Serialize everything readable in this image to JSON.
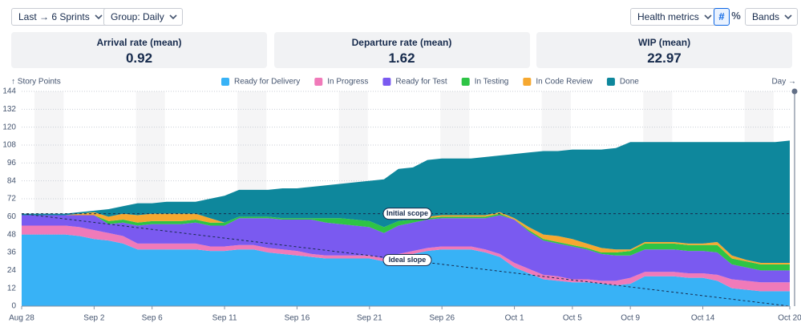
{
  "controls": {
    "range": "Last → 6 Sprints",
    "group": "Group: Daily",
    "health": "Health metrics",
    "count": "#",
    "percent": "%",
    "bands": "Bands"
  },
  "metrics": [
    {
      "label": "Arrival rate (mean)",
      "value": 0.92
    },
    {
      "label": "Departure rate (mean)",
      "value": 1.62
    },
    {
      "label": "WIP (mean)",
      "value": 22.97
    }
  ],
  "chart_data": {
    "type": "stacked-area",
    "y_label": "↑ Story Points",
    "x_label": "Day →",
    "categories": [
      "Aug 28",
      null,
      null,
      null,
      null,
      "Sep 2",
      null,
      null,
      null,
      "Sep 6",
      null,
      null,
      null,
      null,
      "Sep 11",
      null,
      null,
      null,
      null,
      "Sep 16",
      null,
      null,
      null,
      null,
      "Sep 21",
      null,
      null,
      null,
      null,
      "Sep 26",
      null,
      null,
      null,
      null,
      "Oct 1",
      null,
      null,
      null,
      "Oct 5",
      null,
      null,
      null,
      "Oct 9",
      null,
      null,
      null,
      null,
      "Oct 14",
      null,
      null,
      null,
      null,
      null,
      "Oct 20"
    ],
    "series": [
      {
        "name": "Ready for Delivery",
        "color": "#38b2f6",
        "values": [
          48,
          48,
          48,
          48,
          47,
          45,
          44,
          42,
          38,
          38,
          38,
          38,
          38,
          37,
          37,
          38,
          38,
          36,
          35,
          34,
          33,
          32,
          32,
          32,
          32,
          30,
          33,
          35,
          37,
          38,
          38,
          38,
          36,
          33,
          26,
          22,
          18,
          17,
          16,
          16,
          15,
          14,
          15,
          20,
          20,
          20,
          19,
          19,
          17,
          12,
          11,
          10,
          10,
          10
        ]
      },
      {
        "name": "In Progress",
        "color": "#f07ab9",
        "values": [
          6,
          6,
          6,
          6,
          6,
          6,
          5,
          5,
          4,
          4,
          4,
          4,
          4,
          3,
          3,
          3,
          3,
          3,
          3,
          3,
          2,
          2,
          2,
          2,
          2,
          2,
          2,
          2,
          2,
          2,
          2,
          2,
          2,
          2,
          3,
          3,
          3,
          3,
          2,
          2,
          2,
          3,
          4,
          3,
          3,
          3,
          3,
          3,
          4,
          6,
          6,
          6,
          6,
          6
        ]
      },
      {
        "name": "Ready for Test",
        "color": "#7a5af0",
        "values": [
          7,
          7,
          7,
          7,
          8,
          10,
          6,
          9,
          12,
          13,
          13,
          13,
          14,
          14,
          14,
          18,
          18,
          20,
          20,
          21,
          23,
          22,
          21,
          20,
          19,
          17,
          19,
          19,
          19,
          19,
          19,
          19,
          21,
          26,
          29,
          25,
          23,
          22,
          22,
          20,
          18,
          17,
          15,
          15,
          15,
          15,
          15,
          15,
          15,
          10,
          9,
          8,
          8,
          8
        ]
      },
      {
        "name": "In Testing",
        "color": "#2ec445",
        "values": [
          0,
          0,
          0,
          0,
          0,
          0,
          2,
          2,
          2,
          2,
          2,
          2,
          2,
          2,
          2,
          1,
          1,
          1,
          1,
          1,
          1,
          3,
          4,
          4,
          4,
          4,
          3,
          2,
          1,
          1,
          1,
          1,
          1,
          1,
          0,
          1,
          1,
          1,
          1,
          1,
          1,
          2,
          3,
          4,
          4,
          4,
          4,
          4,
          5,
          4,
          4,
          4,
          4,
          4
        ]
      },
      {
        "name": "In Code Review",
        "color": "#f6a830",
        "values": [
          0,
          0,
          0,
          0,
          1,
          2,
          3,
          4,
          5,
          5,
          5,
          5,
          4,
          3,
          0,
          0,
          0,
          0,
          0,
          0,
          0,
          0,
          0,
          0,
          0,
          0,
          0,
          0,
          1,
          1,
          1,
          1,
          1,
          1,
          1,
          2,
          3,
          4,
          4,
          3,
          3,
          2,
          1,
          1,
          1,
          1,
          1,
          1,
          2,
          2,
          1,
          1,
          1,
          1
        ]
      },
      {
        "name": "Done",
        "color": "#0e879c",
        "values": [
          1,
          1,
          1,
          1,
          1,
          1,
          5,
          5,
          8,
          7,
          8,
          8,
          8,
          13,
          18,
          18,
          18,
          18,
          20,
          20,
          21,
          22,
          23,
          25,
          27,
          32,
          35,
          35,
          38,
          38,
          38,
          38,
          39,
          38,
          43,
          50,
          56,
          57,
          60,
          63,
          66,
          68,
          72,
          67,
          67,
          67,
          68,
          68,
          67,
          76,
          79,
          81,
          81,
          82
        ]
      }
    ],
    "reference_lines": [
      {
        "label": "Initial scope",
        "start": 62,
        "end": 62
      },
      {
        "label": "Ideal slope",
        "start": 62,
        "end": 0
      }
    ],
    "ylim": [
      0,
      144
    ],
    "yticks": [
      0,
      12,
      24,
      36,
      48,
      60,
      72,
      84,
      96,
      108,
      120,
      132,
      144
    ],
    "grid": true
  }
}
